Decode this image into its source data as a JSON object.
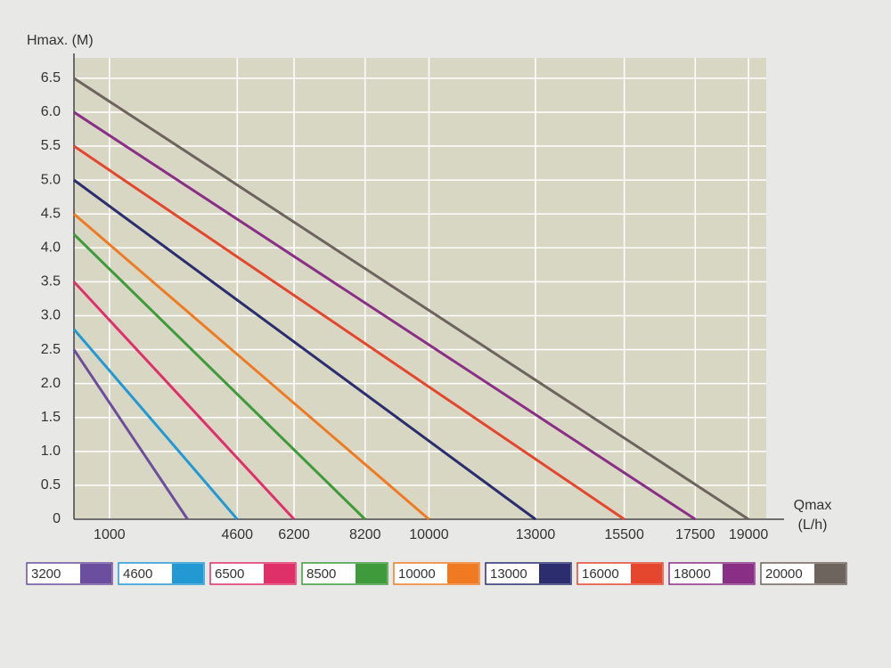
{
  "chart_data": {
    "type": "line",
    "y_label": "Hmax. (M)",
    "x_label": [
      "Qmax",
      "(L/h)"
    ],
    "xlim": [
      0,
      19500
    ],
    "ylim": [
      0,
      6.8
    ],
    "xticks": [
      1000,
      4600,
      6200,
      8200,
      10000,
      13000,
      15500,
      17500,
      19000
    ],
    "yticks": [
      0,
      0.5,
      {
        "value": 1,
        "label": "1.0"
      },
      1.5,
      {
        "value": 2,
        "label": "2.0"
      },
      2.5,
      {
        "value": 3,
        "label": "3.0"
      },
      3.5,
      {
        "value": 4,
        "label": "4.0"
      },
      4.5,
      {
        "value": 5,
        "label": "5.0"
      },
      5.5,
      {
        "value": 6,
        "label": "6.0"
      },
      6.5
    ],
    "grid": true,
    "series": [
      {
        "name": "3200",
        "color": "#6b4f9e",
        "x": [
          0,
          3200
        ],
        "values": [
          2.5,
          0
        ]
      },
      {
        "name": "4600",
        "color": "#2399d4",
        "x": [
          0,
          4600
        ],
        "values": [
          2.8,
          0
        ]
      },
      {
        "name": "6500",
        "color": "#e0306a",
        "x": [
          0,
          6200
        ],
        "values": [
          3.5,
          0
        ]
      },
      {
        "name": "8500",
        "color": "#3f9a3c",
        "x": [
          0,
          8200
        ],
        "values": [
          4.2,
          0
        ]
      },
      {
        "name": "10000",
        "color": "#f07a22",
        "x": [
          0,
          10000
        ],
        "values": [
          4.5,
          0
        ]
      },
      {
        "name": "13000",
        "color": "#2b2d6e",
        "x": [
          0,
          13000
        ],
        "values": [
          5.0,
          0
        ]
      },
      {
        "name": "16000",
        "color": "#e4462e",
        "x": [
          0,
          15500
        ],
        "values": [
          5.5,
          0
        ]
      },
      {
        "name": "18000",
        "color": "#8a2f86",
        "x": [
          0,
          17500
        ],
        "values": [
          6.0,
          0
        ]
      },
      {
        "name": "20000",
        "color": "#6d645d",
        "x": [
          0,
          19000
        ],
        "values": [
          6.5,
          0
        ]
      }
    ]
  }
}
